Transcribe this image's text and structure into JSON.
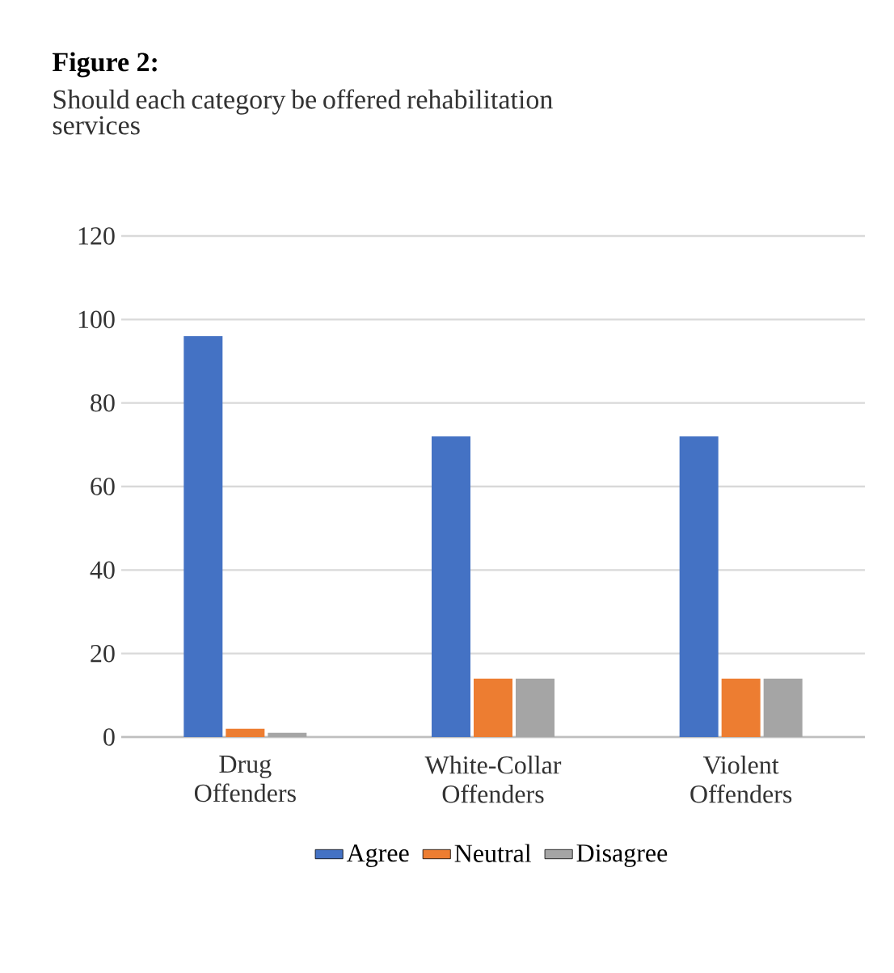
{
  "chart_data": {
    "type": "bar",
    "title": "Figure 2:",
    "subtitle": "Should each category be offered rehabilitation services",
    "categories": [
      "Drug Offenders",
      "White-Collar Offenders",
      "Violent Offenders"
    ],
    "series": [
      {
        "name": "Agree",
        "color": "#4472c4",
        "values": [
          96,
          72,
          72
        ]
      },
      {
        "name": "Neutral",
        "color": "#ed7d31",
        "values": [
          2,
          14,
          14
        ]
      },
      {
        "name": "Disagree",
        "color": "#a5a5a5",
        "values": [
          1,
          14,
          14
        ]
      }
    ],
    "ylim": [
      0,
      120
    ],
    "yticks": [
      0,
      20,
      40,
      60,
      80,
      100,
      120
    ],
    "grid": "y",
    "legend": "bottom"
  }
}
